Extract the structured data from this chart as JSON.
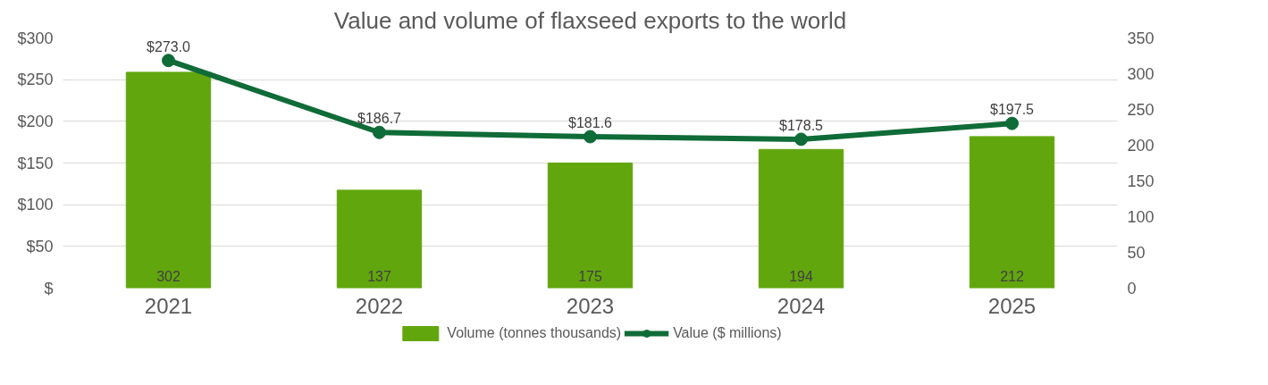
{
  "chart_data": {
    "type": "bar",
    "title": "Value and volume of flaxseed exports to the world",
    "categories": [
      "2021",
      "2022",
      "2023",
      "2024",
      "2025"
    ],
    "series": [
      {
        "name": "Volume (tonnes thousands)",
        "axis": "y2",
        "color": "#62a60e",
        "values": [
          302,
          137,
          175,
          194,
          212
        ],
        "value_labels": [
          "302",
          "137",
          "175",
          "194",
          "212"
        ]
      },
      {
        "name": "Value ($ millions)",
        "type": "line",
        "axis": "y",
        "color": "#0f6b37",
        "marker": "circle",
        "values": [
          273.0,
          186.7,
          181.6,
          178.5,
          197.5
        ],
        "value_labels": [
          "$273.0",
          "$186.7",
          "$181.6",
          "$178.5",
          "$197.5"
        ]
      }
    ],
    "ylim": [
      0,
      300
    ],
    "yticks": [
      {
        "value": 0,
        "label": "$"
      },
      {
        "value": 50,
        "label": "$50"
      },
      {
        "value": 100,
        "label": "$100"
      },
      {
        "value": 150,
        "label": "$150"
      },
      {
        "value": 200,
        "label": "$200"
      },
      {
        "value": 250,
        "label": "$250"
      },
      {
        "value": 300,
        "label": "$300"
      }
    ],
    "y2lim": [
      0,
      350
    ],
    "y2ticks": [
      0,
      50,
      100,
      150,
      200,
      250,
      300,
      350
    ],
    "grid": "y",
    "legend": "bottom"
  }
}
